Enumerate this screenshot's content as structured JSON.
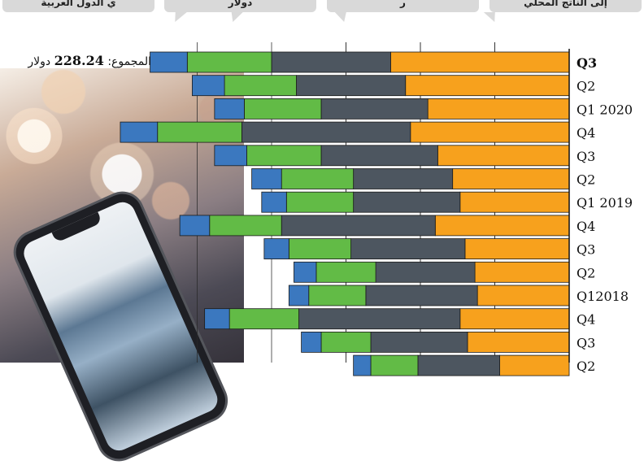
{
  "callouts": [
    {
      "text": "ي الدول العربية"
    },
    {
      "text": "دولار"
    },
    {
      "text": "ر"
    },
    {
      "text": "إلى الناتج المحلي"
    }
  ],
  "total": {
    "prefix": "المجموع:",
    "value": "228.24",
    "unit": "دولار"
  },
  "colors": {
    "blue": "#3b78bf",
    "green": "#62bb46",
    "dark": "#4d5660",
    "orange": "#f7a11d",
    "grid": "#333333"
  },
  "chart_data": {
    "type": "bar",
    "orientation": "horizontal",
    "stacked": true,
    "categories": [
      "Q3",
      "Q2",
      "Q1 2020",
      "Q4",
      "Q3",
      "Q2",
      "Q1 2019",
      "Q4",
      "Q3",
      "Q2",
      "Q12018",
      "Q4",
      "Q3",
      "Q2"
    ],
    "category_bold": [
      true,
      false,
      false,
      false,
      false,
      false,
      false,
      false,
      false,
      false,
      false,
      false,
      false,
      false
    ],
    "series": [
      {
        "color": "orange",
        "values": [
          72,
          66,
          57,
          64,
          53,
          47,
          44,
          54,
          42,
          38,
          37,
          44,
          41,
          28
        ]
      },
      {
        "color": "dark",
        "values": [
          48,
          44,
          43,
          68,
          47,
          40,
          43,
          62,
          46,
          40,
          45,
          65,
          39,
          33
        ]
      },
      {
        "color": "green",
        "values": [
          34,
          29,
          31,
          34,
          30,
          29,
          27,
          29,
          25,
          24,
          23,
          28,
          20,
          19
        ]
      },
      {
        "color": "blue",
        "values": [
          15,
          13,
          12,
          15,
          13,
          12,
          10,
          12,
          10,
          9,
          8,
          10,
          8,
          7
        ]
      }
    ],
    "xlim": [
      0,
      180
    ],
    "grid": true,
    "direction": "right-to-left"
  }
}
